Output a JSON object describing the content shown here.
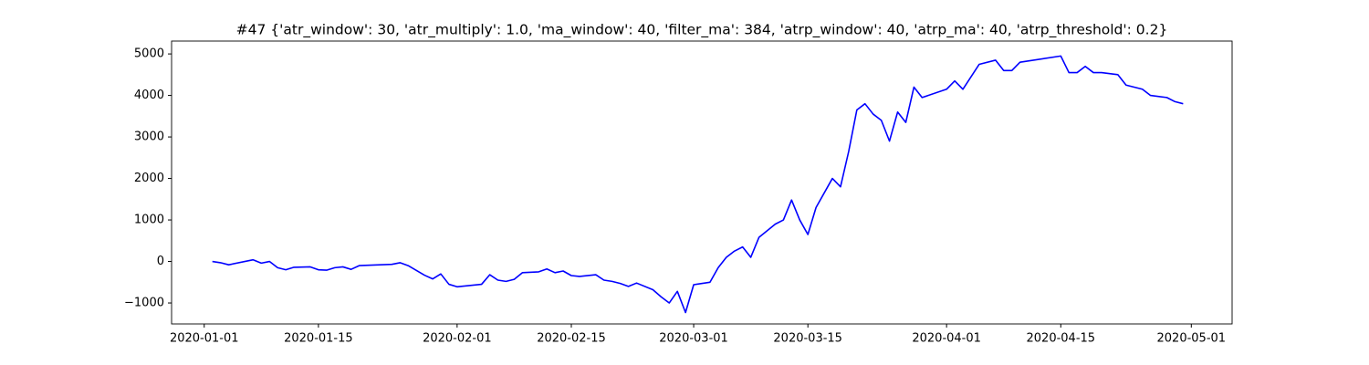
{
  "chart_data": {
    "type": "line",
    "title": "#47 {'atr_window': 30, 'atr_multiply': 1.0, 'ma_window': 40, 'filter_ma': 384, 'atrp_window': 40, 'atrp_ma': 40, 'atrp_threshold': 0.2}",
    "x": [
      "2020-01-02",
      "2020-01-03",
      "2020-01-04",
      "2020-01-07",
      "2020-01-08",
      "2020-01-09",
      "2020-01-10",
      "2020-01-11",
      "2020-01-12",
      "2020-01-14",
      "2020-01-15",
      "2020-01-16",
      "2020-01-17",
      "2020-01-18",
      "2020-01-19",
      "2020-01-20",
      "2020-01-24",
      "2020-01-25",
      "2020-01-26",
      "2020-01-28",
      "2020-01-29",
      "2020-01-30",
      "2020-01-31",
      "2020-02-01",
      "2020-02-04",
      "2020-02-05",
      "2020-02-06",
      "2020-02-07",
      "2020-02-08",
      "2020-02-09",
      "2020-02-11",
      "2020-02-12",
      "2020-02-13",
      "2020-02-14",
      "2020-02-15",
      "2020-02-16",
      "2020-02-18",
      "2020-02-19",
      "2020-02-20",
      "2020-02-21",
      "2020-02-22",
      "2020-02-23",
      "2020-02-25",
      "2020-02-26",
      "2020-02-27",
      "2020-02-28",
      "2020-02-29",
      "2020-03-01",
      "2020-03-03",
      "2020-03-04",
      "2020-03-05",
      "2020-03-06",
      "2020-03-07",
      "2020-03-08",
      "2020-03-09",
      "2020-03-11",
      "2020-03-12",
      "2020-03-13",
      "2020-03-14",
      "2020-03-15",
      "2020-03-16",
      "2020-03-18",
      "2020-03-19",
      "2020-03-20",
      "2020-03-21",
      "2020-03-22",
      "2020-03-23",
      "2020-03-24",
      "2020-03-25",
      "2020-03-26",
      "2020-03-27",
      "2020-03-28",
      "2020-03-29",
      "2020-04-01",
      "2020-04-02",
      "2020-04-03",
      "2020-04-05",
      "2020-04-07",
      "2020-04-08",
      "2020-04-09",
      "2020-04-10",
      "2020-04-15",
      "2020-04-16",
      "2020-04-17",
      "2020-04-18",
      "2020-04-19",
      "2020-04-20",
      "2020-04-22",
      "2020-04-23",
      "2020-04-25",
      "2020-04-26",
      "2020-04-28",
      "2020-04-29",
      "2020-04-30"
    ],
    "series": [
      {
        "color": "#0000ff",
        "values": [
          0,
          -30,
          -80,
          40,
          -40,
          0,
          -150,
          -200,
          -140,
          -130,
          -200,
          -210,
          -150,
          -130,
          -190,
          -100,
          -70,
          -30,
          -100,
          -330,
          -420,
          -300,
          -550,
          -610,
          -550,
          -320,
          -450,
          -480,
          -430,
          -270,
          -250,
          -180,
          -270,
          -230,
          -340,
          -360,
          -320,
          -450,
          -480,
          -530,
          -600,
          -520,
          -680,
          -850,
          -1000,
          -720,
          -1230,
          -560,
          -500,
          -150,
          100,
          250,
          350,
          100,
          580,
          900,
          1000,
          1480,
          1000,
          650,
          1300,
          2000,
          1800,
          2650,
          3650,
          3800,
          3550,
          3400,
          2900,
          3600,
          3350,
          4200,
          3950,
          4150,
          4350,
          4150,
          4750,
          4850,
          4600,
          4600,
          4800,
          4950,
          4550,
          4550,
          4700,
          4550,
          4550,
          4500,
          4250,
          4150,
          4000,
          3950,
          3850,
          3800
        ]
      }
    ],
    "xlim": [
      "2019-12-28",
      "2020-05-06"
    ],
    "xticks": [
      "2020-01-01",
      "2020-01-15",
      "2020-02-01",
      "2020-02-15",
      "2020-03-01",
      "2020-03-15",
      "2020-04-01",
      "2020-04-15",
      "2020-05-01"
    ],
    "ylim": [
      -1505,
      5310
    ],
    "yticks": [
      {
        "value": -1000,
        "label": "−1000"
      },
      0,
      1000,
      2000,
      3000,
      4000,
      5000
    ]
  }
}
